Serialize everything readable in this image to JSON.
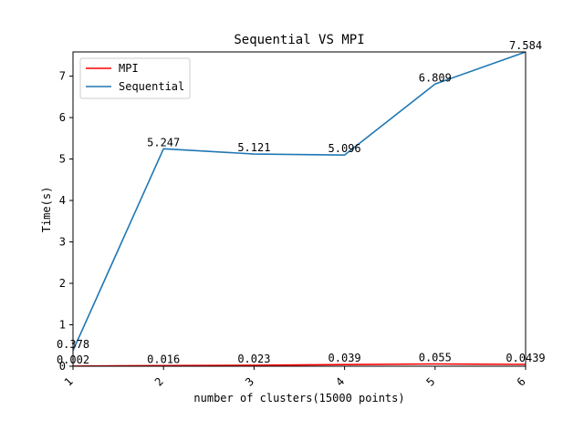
{
  "chart_data": {
    "type": "line",
    "title": "Sequential VS MPI",
    "xlabel": "number of clusters(15000 points)",
    "ylabel": "Time(s)",
    "x": [
      1,
      2,
      3,
      4,
      5,
      6
    ],
    "x_tick_labels": [
      "1",
      "2",
      "3",
      "4",
      "5",
      "6"
    ],
    "y_ticks": [
      0,
      1,
      2,
      3,
      4,
      5,
      6,
      7
    ],
    "y_tick_labels": [
      "0",
      "1",
      "2",
      "3",
      "4",
      "5",
      "6",
      "7"
    ],
    "xlim": [
      1,
      6
    ],
    "ylim": [
      0,
      7.584
    ],
    "grid": false,
    "legend_position": "top-left",
    "series": [
      {
        "name": "MPI",
        "color": "#ff0000",
        "values": [
          0.002,
          0.016,
          0.023,
          0.039,
          0.055,
          0.0439
        ],
        "labels": [
          "0.002",
          "0.016",
          "0.023",
          "0.039",
          "0.055",
          "0.0439"
        ]
      },
      {
        "name": "Sequential",
        "color": "#1f77b4",
        "values": [
          0.378,
          5.247,
          5.121,
          5.096,
          6.809,
          7.584
        ],
        "labels": [
          "0.378",
          "5.247",
          "5.121",
          "5.096",
          "6.809",
          "7.584"
        ]
      }
    ]
  }
}
